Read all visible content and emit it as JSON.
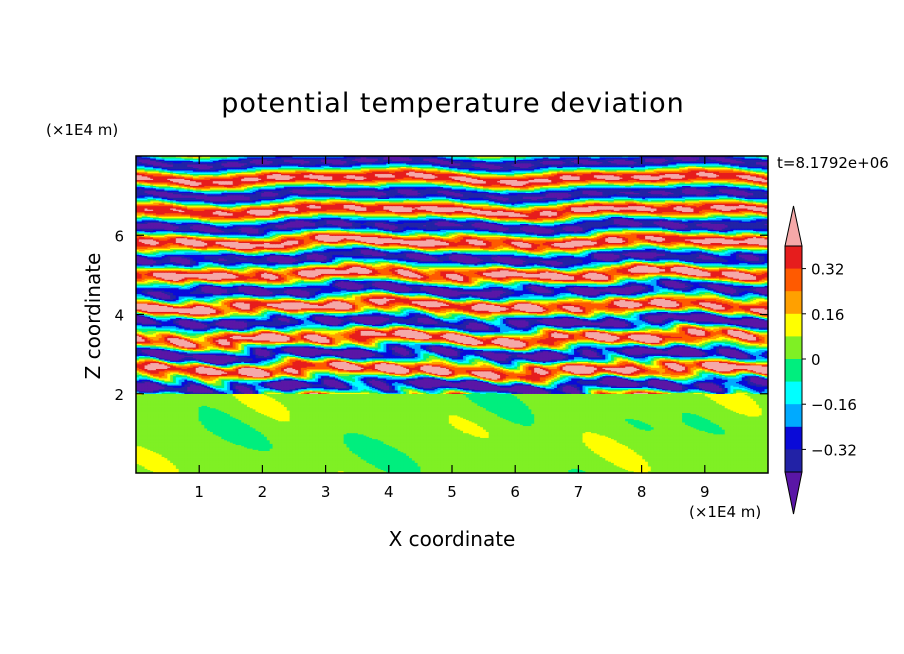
{
  "chart_data": {
    "type": "heatmap",
    "title": "potential temperature deviation",
    "xlabel": "X coordinate",
    "ylabel": "Z coordinate",
    "x_units": "(×1E4 m)",
    "y_units": "(×1E4 m)",
    "time_label": "t=8.1792e+06",
    "xlim": [
      0,
      10
    ],
    "ylim": [
      0,
      8
    ],
    "x_ticks": [
      "1",
      "2",
      "3",
      "4",
      "5",
      "6",
      "7",
      "8",
      "9"
    ],
    "y_ticks": [
      "2",
      "4",
      "6"
    ],
    "colorbar": {
      "levels": [
        -0.4,
        -0.32,
        -0.24,
        -0.16,
        -0.08,
        0,
        0.08,
        0.16,
        0.24,
        0.32,
        0.4
      ],
      "labels": [
        "0.32",
        "0.16",
        "0",
        "−0.16",
        "−0.32"
      ],
      "label_values": [
        0.32,
        0.16,
        0,
        -0.16,
        -0.32
      ],
      "colors": [
        "#5a16a6",
        "#2222a6",
        "#0a0ad8",
        "#00aaff",
        "#00ffff",
        "#00ee7e",
        "#7ff024",
        "#ffff00",
        "#ffa000",
        "#ff5a00",
        "#e61d1d",
        "#f5a8a8"
      ],
      "extend": "both"
    },
    "layers": [
      {
        "z_range": [
          0,
          2
        ],
        "description_values": [
          0.0,
          0.08
        ]
      },
      {
        "z_range": [
          2,
          8
        ],
        "description_values": [
          -0.4,
          0.4
        ]
      }
    ]
  }
}
